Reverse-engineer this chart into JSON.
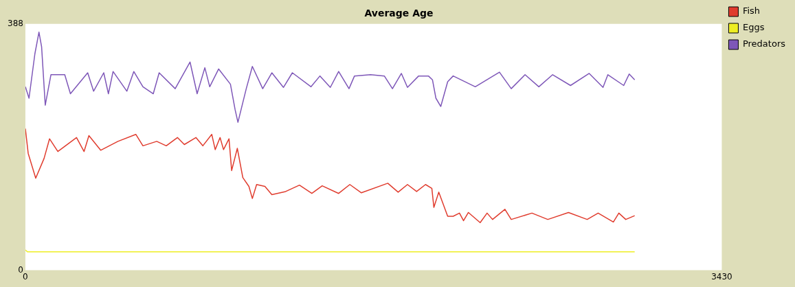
{
  "chart_data": {
    "type": "line",
    "title": "Average Age",
    "legend": "top right",
    "grid": false,
    "marker": "none",
    "line_style": "solid",
    "xlim": [
      0,
      3430
    ],
    "xticks": [
      0,
      3430
    ],
    "ylim": [
      0,
      388
    ],
    "yticks": [
      0,
      388
    ],
    "series": [
      {
        "name": "Fish",
        "color": "#e03c2e",
        "x": [
          0,
          14,
          51,
          92,
          119,
          160,
          252,
          289,
          313,
          371,
          456,
          544,
          579,
          647,
          694,
          749,
          783,
          840,
          874,
          918,
          935,
          959,
          976,
          1003,
          1016,
          1044,
          1071,
          1101,
          1118,
          1139,
          1180,
          1214,
          1282,
          1350,
          1411,
          1462,
          1543,
          1598,
          1655,
          1785,
          1836,
          1882,
          1927,
          1971,
          2002,
          2012,
          2036,
          2080,
          2107,
          2138,
          2158,
          2182,
          2240,
          2274,
          2301,
          2362,
          2393,
          2495,
          2573,
          2675,
          2767,
          2821,
          2896,
          2923,
          2957,
          3001
        ],
        "values": [
          223,
          184,
          145,
          176,
          207,
          187,
          209,
          187,
          212,
          189,
          203,
          214,
          196,
          203,
          196,
          209,
          198,
          209,
          196,
          214,
          190,
          209,
          190,
          207,
          157,
          192,
          146,
          132,
          113,
          135,
          132,
          119,
          124,
          134,
          121,
          133,
          121,
          135,
          122,
          137,
          123,
          135,
          124,
          135,
          129,
          99,
          123,
          85,
          85,
          90,
          78,
          91,
          75,
          90,
          80,
          96,
          80,
          90,
          80,
          91,
          80,
          90,
          76,
          90,
          80,
          86
        ]
      },
      {
        "name": "Eggs",
        "color": "#eeee22",
        "x": [
          0,
          10,
          3001
        ],
        "values": [
          32,
          29,
          29
        ]
      },
      {
        "name": "Predators",
        "color": "#7e57b8",
        "x": [
          0,
          18,
          47,
          67,
          80,
          98,
          126,
          194,
          222,
          307,
          336,
          386,
          409,
          432,
          500,
          534,
          579,
          630,
          659,
          738,
          811,
          846,
          884,
          908,
          952,
          1010,
          1033,
          1047,
          1088,
          1118,
          1169,
          1214,
          1271,
          1315,
          1407,
          1451,
          1502,
          1543,
          1594,
          1621,
          1700,
          1768,
          1808,
          1852,
          1882,
          1937,
          1985,
          2005,
          2022,
          2046,
          2080,
          2107,
          2216,
          2335,
          2393,
          2461,
          2529,
          2597,
          2685,
          2777,
          2845,
          2869,
          2947,
          2974,
          3001
        ],
        "values": [
          289,
          271,
          341,
          375,
          352,
          260,
          308,
          308,
          278,
          311,
          282,
          311,
          278,
          313,
          282,
          313,
          289,
          278,
          311,
          286,
          328,
          278,
          319,
          289,
          317,
          293,
          253,
          233,
          286,
          321,
          286,
          311,
          288,
          311,
          289,
          306,
          288,
          313,
          286,
          306,
          308,
          306,
          286,
          310,
          288,
          306,
          306,
          300,
          271,
          258,
          297,
          306,
          289,
          312,
          286,
          308,
          289,
          308,
          291,
          310,
          288,
          308,
          291,
          309,
          300
        ]
      }
    ]
  }
}
